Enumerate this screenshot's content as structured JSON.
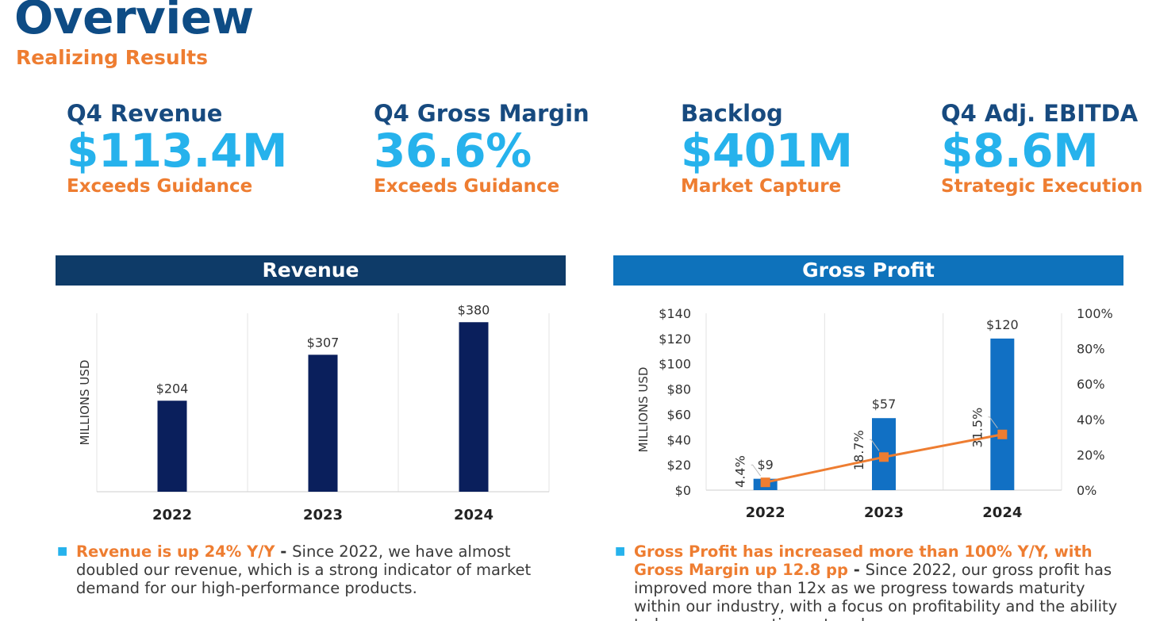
{
  "header": {
    "title": "Overview",
    "subtitle": "Realizing Results"
  },
  "kpis": [
    {
      "label": "Q4 Revenue",
      "value": "$113.4M",
      "note": "Exceeds Guidance"
    },
    {
      "label": "Q4 Gross Margin",
      "value": "36.6%",
      "note": "Exceeds Guidance"
    },
    {
      "label": "Backlog",
      "value": "$401M",
      "note": "Market Capture"
    },
    {
      "label": "Q4 Adj. EBITDA",
      "value": "$8.6M",
      "note": "Strategic Execution"
    }
  ],
  "colors": {
    "navy": "#0e3b68",
    "blue": "#0e72bb",
    "bar_dark": "#0a1f5c",
    "bar_blue": "#1170c4",
    "orange": "#ee7d31",
    "cyan": "#26b2ec"
  },
  "chart_data": [
    {
      "type": "bar",
      "title": "Revenue",
      "ylabel": "MILLIONS USD",
      "categories": [
        "2022",
        "2023",
        "2024"
      ],
      "values": [
        204,
        307,
        380
      ],
      "value_labels": [
        "$204",
        "$307",
        "$380"
      ],
      "ylim": [
        0,
        400
      ],
      "grid": false
    },
    {
      "type": "bar",
      "title": "Gross Profit",
      "ylabel": "MILLIONS USD",
      "categories": [
        "2022",
        "2023",
        "2024"
      ],
      "values": [
        9,
        57,
        120
      ],
      "value_labels": [
        "$9",
        "$57",
        "$120"
      ],
      "ylim": [
        0,
        140
      ],
      "yticks": [
        "$0",
        "$20",
        "$40",
        "$60",
        "$80",
        "$100",
        "$120",
        "$140"
      ],
      "y2lim": [
        0,
        100
      ],
      "y2ticks": [
        "0%",
        "20%",
        "40%",
        "60%",
        "80%",
        "100%"
      ],
      "line_series": {
        "name": "Gross Margin",
        "values": [
          4.4,
          18.7,
          31.5
        ],
        "value_labels": [
          "4.4%",
          "18.7%",
          "31.5%"
        ]
      },
      "grid": false
    }
  ],
  "bullets": {
    "revenue": {
      "lead": "Revenue is up 24% Y/Y",
      "sep": " - ",
      "text": "Since 2022, we have almost doubled our revenue, which is a strong indicator of market demand for our high-performance products."
    },
    "gross_profit": {
      "lead": "Gross Profit has increased more than 100% Y/Y, with Gross Margin up 12.8 pp",
      "sep": " - ",
      "text": "Since 2022, our gross profit has improved more than 12x as we progress towards maturity within our industry, with a focus on profitability and the ability to leverage operations at scale."
    }
  }
}
